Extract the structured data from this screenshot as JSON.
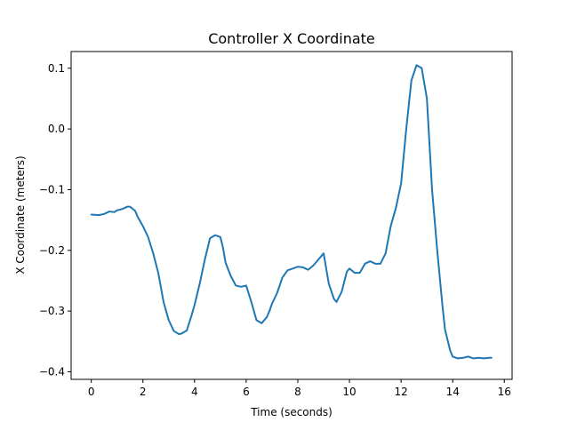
{
  "chart_data": {
    "type": "line",
    "title": "Controller X Coordinate",
    "xlabel": "Time (seconds)",
    "ylabel": "X Coordinate (meters)",
    "xlim": [
      -0.78,
      16.3
    ],
    "ylim": [
      -0.4125,
      0.1275
    ],
    "xticks": [
      0,
      2,
      4,
      6,
      8,
      10,
      12,
      14,
      16
    ],
    "xtick_labels": [
      "0",
      "2",
      "4",
      "6",
      "8",
      "10",
      "12",
      "14",
      "16"
    ],
    "yticks": [
      -0.4,
      -0.3,
      -0.2,
      -0.1,
      0.0,
      0.1
    ],
    "ytick_labels": [
      "−0.4",
      "−0.3",
      "−0.2",
      "−0.1",
      "0.0",
      "0.1"
    ],
    "grid": false,
    "series": [
      {
        "color": "#1f77b4",
        "x": [
          0,
          0.3,
          0.5,
          0.7,
          0.9,
          1.0,
          1.2,
          1.4,
          1.5,
          1.7,
          1.8,
          2.0,
          2.2,
          2.4,
          2.6,
          2.8,
          3.0,
          3.2,
          3.4,
          3.5,
          3.7,
          3.9,
          4.0,
          4.2,
          4.4,
          4.6,
          4.8,
          5.0,
          5.1,
          5.2,
          5.4,
          5.6,
          5.8,
          6.0,
          6.2,
          6.3,
          6.4,
          6.6,
          6.8,
          6.9,
          7.0,
          7.2,
          7.4,
          7.6,
          7.8,
          8.0,
          8.2,
          8.4,
          8.6,
          8.8,
          9.0,
          9.2,
          9.4,
          9.5,
          9.7,
          9.9,
          10.0,
          10.2,
          10.4,
          10.6,
          10.8,
          11.0,
          11.2,
          11.4,
          11.6,
          11.8,
          12.0,
          12.2,
          12.4,
          12.6,
          12.8,
          13.0,
          13.2,
          13.4,
          13.6,
          13.7,
          13.9,
          14.0,
          14.2,
          14.4,
          14.6,
          14.8,
          15.0,
          15.2,
          15.4,
          15.5
        ],
        "y": [
          -0.141,
          -0.142,
          -0.14,
          -0.136,
          -0.137,
          -0.134,
          -0.132,
          -0.128,
          -0.128,
          -0.135,
          -0.145,
          -0.16,
          -0.178,
          -0.205,
          -0.238,
          -0.285,
          -0.315,
          -0.333,
          -0.338,
          -0.337,
          -0.332,
          -0.305,
          -0.29,
          -0.255,
          -0.215,
          -0.18,
          -0.175,
          -0.178,
          -0.195,
          -0.22,
          -0.242,
          -0.258,
          -0.26,
          -0.258,
          -0.285,
          -0.3,
          -0.315,
          -0.32,
          -0.31,
          -0.3,
          -0.288,
          -0.27,
          -0.245,
          -0.233,
          -0.23,
          -0.227,
          -0.228,
          -0.232,
          -0.225,
          -0.215,
          -0.205,
          -0.255,
          -0.28,
          -0.285,
          -0.268,
          -0.235,
          -0.23,
          -0.237,
          -0.237,
          -0.222,
          -0.218,
          -0.222,
          -0.222,
          -0.205,
          -0.16,
          -0.13,
          -0.09,
          0.0,
          0.08,
          0.105,
          0.1,
          0.05,
          -0.1,
          -0.2,
          -0.29,
          -0.33,
          -0.365,
          -0.375,
          -0.378,
          -0.377,
          -0.375,
          -0.378,
          -0.377,
          -0.378,
          -0.377,
          -0.377
        ]
      }
    ]
  }
}
